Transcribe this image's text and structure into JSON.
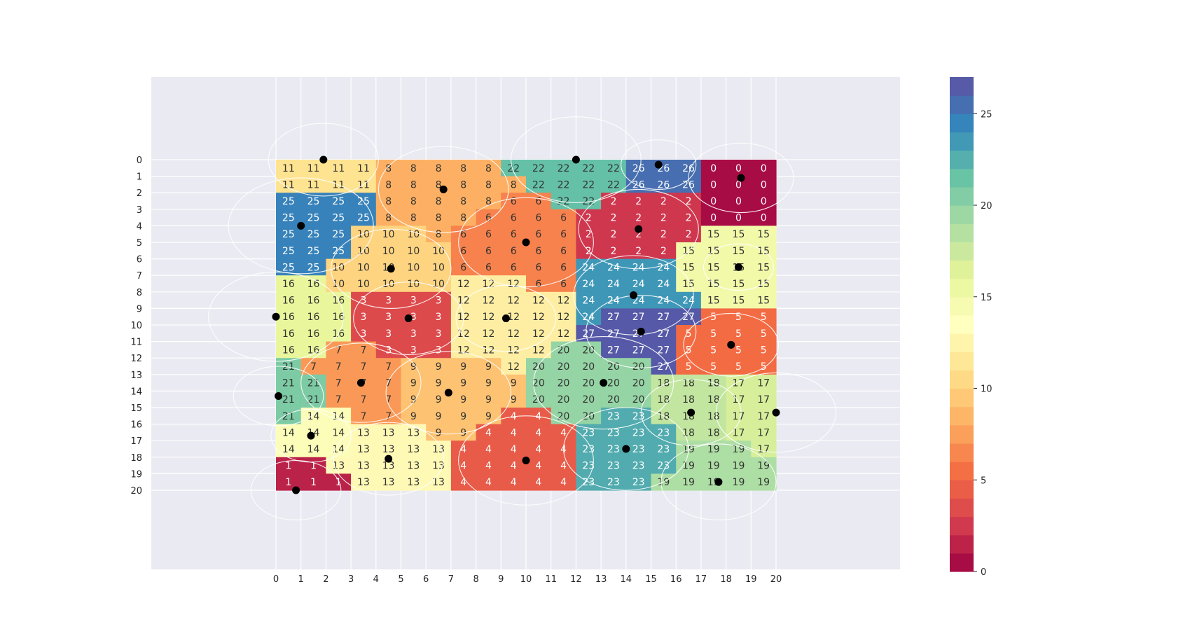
{
  "chart_data": {
    "type": "heatmap",
    "title": "",
    "xlabel": "",
    "ylabel": "",
    "x_ticks": [
      0,
      1,
      2,
      3,
      4,
      5,
      6,
      7,
      8,
      9,
      10,
      11,
      12,
      13,
      14,
      15,
      16,
      17,
      18,
      19,
      20
    ],
    "y_ticks": [
      0,
      1,
      2,
      3,
      4,
      5,
      6,
      7,
      8,
      9,
      10,
      11,
      12,
      13,
      14,
      15,
      16,
      17,
      18,
      19,
      20
    ],
    "xlim": [
      -5,
      25
    ],
    "ylim": [
      -5,
      25
    ],
    "grid": true,
    "colormap": "Spectral",
    "colorbar": {
      "min": 0,
      "max": 27,
      "levels": 27,
      "ticks": [
        0,
        5,
        10,
        15,
        20,
        25
      ]
    },
    "cells": [
      [
        11,
        11,
        11,
        11,
        8,
        8,
        8,
        8,
        8,
        22,
        22,
        22,
        22,
        22,
        26,
        26,
        26,
        0,
        0,
        0
      ],
      [
        11,
        11,
        11,
        11,
        8,
        8,
        8,
        8,
        8,
        8,
        22,
        22,
        22,
        22,
        26,
        26,
        26,
        0,
        0,
        0
      ],
      [
        25,
        25,
        25,
        25,
        8,
        8,
        8,
        8,
        8,
        6,
        6,
        22,
        22,
        2,
        2,
        2,
        2,
        0,
        0,
        0
      ],
      [
        25,
        25,
        25,
        25,
        8,
        8,
        8,
        8,
        6,
        6,
        6,
        6,
        2,
        2,
        2,
        2,
        2,
        0,
        0,
        0
      ],
      [
        25,
        25,
        25,
        10,
        10,
        10,
        8,
        6,
        6,
        6,
        6,
        6,
        2,
        2,
        2,
        2,
        2,
        15,
        15,
        15
      ],
      [
        25,
        25,
        25,
        10,
        10,
        10,
        10,
        6,
        6,
        6,
        6,
        6,
        2,
        2,
        2,
        2,
        15,
        15,
        15,
        15
      ],
      [
        25,
        25,
        10,
        10,
        10,
        10,
        10,
        6,
        6,
        6,
        6,
        6,
        24,
        24,
        24,
        24,
        15,
        15,
        15,
        15
      ],
      [
        16,
        16,
        10,
        10,
        10,
        10,
        10,
        12,
        12,
        12,
        6,
        6,
        24,
        24,
        24,
        24,
        15,
        15,
        15,
        15
      ],
      [
        16,
        16,
        16,
        3,
        3,
        3,
        3,
        12,
        12,
        12,
        12,
        12,
        24,
        24,
        24,
        24,
        24,
        15,
        15,
        15
      ],
      [
        16,
        16,
        16,
        3,
        3,
        3,
        3,
        12,
        12,
        12,
        12,
        12,
        24,
        27,
        27,
        27,
        27,
        5,
        5,
        5
      ],
      [
        16,
        16,
        16,
        3,
        3,
        3,
        3,
        12,
        12,
        12,
        12,
        12,
        27,
        27,
        27,
        27,
        5,
        5,
        5,
        5
      ],
      [
        16,
        16,
        7,
        7,
        3,
        3,
        3,
        12,
        12,
        12,
        12,
        20,
        20,
        27,
        27,
        27,
        5,
        5,
        5,
        5
      ],
      [
        21,
        7,
        7,
        7,
        7,
        9,
        9,
        9,
        9,
        12,
        20,
        20,
        20,
        20,
        20,
        27,
        5,
        5,
        5,
        5
      ],
      [
        21,
        21,
        7,
        7,
        7,
        9,
        9,
        9,
        9,
        9,
        20,
        20,
        20,
        20,
        20,
        18,
        18,
        18,
        17,
        17
      ],
      [
        21,
        21,
        7,
        7,
        7,
        9,
        9,
        9,
        9,
        9,
        20,
        20,
        20,
        20,
        20,
        18,
        18,
        18,
        17,
        17
      ],
      [
        21,
        14,
        14,
        7,
        7,
        9,
        9,
        9,
        9,
        4,
        4,
        20,
        20,
        23,
        23,
        18,
        18,
        18,
        17,
        17
      ],
      [
        14,
        14,
        14,
        13,
        13,
        13,
        9,
        9,
        4,
        4,
        4,
        4,
        23,
        23,
        23,
        23,
        18,
        18,
        17,
        17
      ],
      [
        14,
        14,
        14,
        13,
        13,
        13,
        13,
        4,
        4,
        4,
        4,
        4,
        23,
        23,
        23,
        23,
        19,
        19,
        19,
        17
      ],
      [
        1,
        1,
        13,
        13,
        13,
        13,
        13,
        4,
        4,
        4,
        4,
        4,
        23,
        23,
        23,
        23,
        19,
        19,
        19,
        19
      ],
      [
        1,
        1,
        1,
        13,
        13,
        13,
        13,
        4,
        4,
        4,
        4,
        4,
        23,
        23,
        23,
        19,
        19,
        19,
        19,
        19
      ]
    ],
    "points": [
      {
        "x": 1.9,
        "y": 0.0
      },
      {
        "x": 12.0,
        "y": 0.0
      },
      {
        "x": 15.3,
        "y": 0.3
      },
      {
        "x": 18.6,
        "y": 1.1
      },
      {
        "x": 6.7,
        "y": 1.8
      },
      {
        "x": 1.0,
        "y": 4.0
      },
      {
        "x": 14.5,
        "y": 4.2
      },
      {
        "x": 10.0,
        "y": 5.0
      },
      {
        "x": 4.6,
        "y": 6.6
      },
      {
        "x": 18.5,
        "y": 6.5
      },
      {
        "x": 14.3,
        "y": 8.2
      },
      {
        "x": 0.0,
        "y": 9.5
      },
      {
        "x": 5.3,
        "y": 9.6
      },
      {
        "x": 9.2,
        "y": 9.6
      },
      {
        "x": 14.6,
        "y": 10.4
      },
      {
        "x": 18.2,
        "y": 11.2
      },
      {
        "x": 3.4,
        "y": 13.5
      },
      {
        "x": 13.1,
        "y": 13.5
      },
      {
        "x": 6.9,
        "y": 14.1
      },
      {
        "x": 0.1,
        "y": 14.3
      },
      {
        "x": 16.6,
        "y": 15.3
      },
      {
        "x": 20.0,
        "y": 15.3
      },
      {
        "x": 1.4,
        "y": 16.7
      },
      {
        "x": 14.0,
        "y": 17.5
      },
      {
        "x": 4.5,
        "y": 18.1
      },
      {
        "x": 10.0,
        "y": 18.2
      },
      {
        "x": 17.7,
        "y": 19.5
      },
      {
        "x": 0.8,
        "y": 20.0
      }
    ],
    "circles": [
      {
        "cx": 1.9,
        "cy": 0.0,
        "r": 2.2
      },
      {
        "cx": 6.7,
        "cy": 1.8,
        "r": 2.6
      },
      {
        "cx": 12.0,
        "cy": 0.0,
        "r": 2.6
      },
      {
        "cx": 15.3,
        "cy": 0.3,
        "r": 1.5
      },
      {
        "cx": 18.6,
        "cy": 1.1,
        "r": 2.1
      },
      {
        "cx": 1.0,
        "cy": 4.0,
        "r": 2.9
      },
      {
        "cx": 4.6,
        "cy": 6.6,
        "r": 2.4
      },
      {
        "cx": 10.0,
        "cy": 5.0,
        "r": 2.7
      },
      {
        "cx": 14.5,
        "cy": 4.2,
        "r": 2.4
      },
      {
        "cx": 18.5,
        "cy": 6.5,
        "r": 1.4
      },
      {
        "cx": 0.0,
        "cy": 9.5,
        "r": 2.7
      },
      {
        "cx": 5.3,
        "cy": 9.6,
        "r": 2.2
      },
      {
        "cx": 9.2,
        "cy": 9.6,
        "r": 2.0
      },
      {
        "cx": 14.3,
        "cy": 8.2,
        "r": 2.4
      },
      {
        "cx": 14.6,
        "cy": 10.4,
        "r": 2.2
      },
      {
        "cx": 18.2,
        "cy": 11.2,
        "r": 1.9
      },
      {
        "cx": 3.4,
        "cy": 13.5,
        "r": 2.4
      },
      {
        "cx": 6.9,
        "cy": 14.1,
        "r": 2.5
      },
      {
        "cx": 13.1,
        "cy": 13.5,
        "r": 2.8
      },
      {
        "cx": 0.1,
        "cy": 14.3,
        "r": 1.8
      },
      {
        "cx": 16.6,
        "cy": 15.3,
        "r": 2.0
      },
      {
        "cx": 20.0,
        "cy": 15.3,
        "r": 2.4
      },
      {
        "cx": 1.4,
        "cy": 16.7,
        "r": 1.6
      },
      {
        "cx": 4.5,
        "cy": 18.1,
        "r": 2.2
      },
      {
        "cx": 10.0,
        "cy": 18.2,
        "r": 2.7
      },
      {
        "cx": 14.0,
        "cy": 17.5,
        "r": 2.5
      },
      {
        "cx": 17.7,
        "cy": 19.5,
        "r": 2.3
      },
      {
        "cx": 0.8,
        "cy": 20.0,
        "r": 1.8
      }
    ]
  }
}
